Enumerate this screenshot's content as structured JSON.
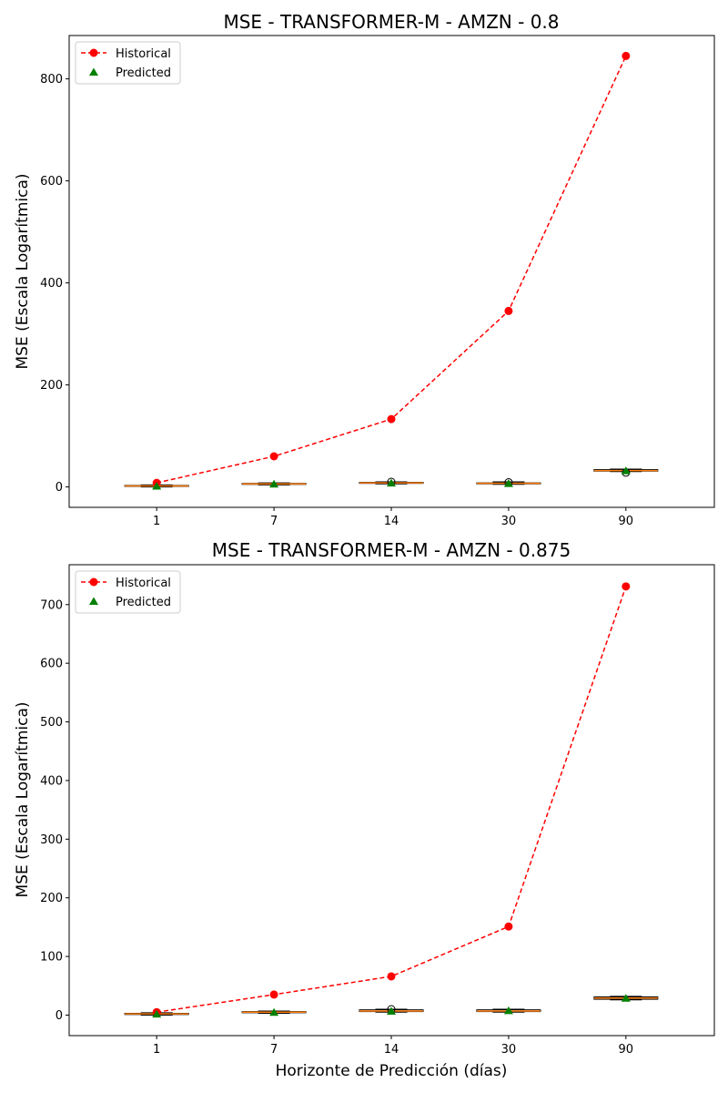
{
  "chart_data": [
    {
      "type": "line",
      "title": "MSE - TRANSFORMER-M - AMZN - 0.8",
      "xlabel": "",
      "ylabel": "MSE (Escala Logarítmica)",
      "categories": [
        "1",
        "7",
        "14",
        "30",
        "90"
      ],
      "ylim": [
        -40,
        885
      ],
      "yticks": [
        0,
        200,
        400,
        600,
        800
      ],
      "grid": false,
      "legend_position": "top-left",
      "series": [
        {
          "name": "Historical",
          "values": [
            8,
            60,
            133,
            345,
            845
          ],
          "color": "#ff0000",
          "marker": "circle",
          "style": "dashed"
        },
        {
          "name": "Predicted",
          "values": [
            2,
            6,
            8,
            7,
            32
          ],
          "color": "#008000",
          "marker": "triangle"
        }
      ],
      "boxes": [
        {
          "q1": 1,
          "median": 2,
          "q3": 3,
          "min": 0,
          "max": 4,
          "outliers": []
        },
        {
          "q1": 5,
          "median": 6,
          "q3": 7,
          "min": 4,
          "max": 8,
          "outliers": []
        },
        {
          "q1": 7,
          "median": 8,
          "q3": 9,
          "min": 6,
          "max": 10,
          "outliers": [
            10
          ]
        },
        {
          "q1": 6,
          "median": 7,
          "q3": 8,
          "min": 5,
          "max": 10,
          "outliers": [
            9
          ]
        },
        {
          "q1": 31,
          "median": 32,
          "q3": 34,
          "min": 30,
          "max": 35,
          "outliers": [
            28
          ]
        }
      ]
    },
    {
      "type": "line",
      "title": "MSE - TRANSFORMER-M - AMZN - 0.875",
      "xlabel": "Horizonte de Predicción (días)",
      "ylabel": "MSE (Escala Logarítmica)",
      "categories": [
        "1",
        "7",
        "14",
        "30",
        "90"
      ],
      "ylim": [
        -35,
        768
      ],
      "yticks": [
        0,
        100,
        200,
        300,
        400,
        500,
        600,
        700
      ],
      "grid": false,
      "legend_position": "top-left",
      "series": [
        {
          "name": "Historical",
          "values": [
            5,
            35,
            66,
            151,
            731
          ],
          "color": "#ff0000",
          "marker": "circle",
          "style": "dashed"
        },
        {
          "name": "Predicted",
          "values": [
            2,
            5,
            7,
            8,
            29
          ],
          "color": "#008000",
          "marker": "triangle"
        }
      ],
      "boxes": [
        {
          "q1": 1,
          "median": 2,
          "q3": 3,
          "min": 0,
          "max": 4,
          "outliers": []
        },
        {
          "q1": 4,
          "median": 5,
          "q3": 6,
          "min": 3,
          "max": 7,
          "outliers": []
        },
        {
          "q1": 6,
          "median": 7,
          "q3": 9,
          "min": 5,
          "max": 10,
          "outliers": [
            10
          ]
        },
        {
          "q1": 6,
          "median": 7,
          "q3": 9,
          "min": 5,
          "max": 10,
          "outliers": []
        },
        {
          "q1": 27,
          "median": 29,
          "q3": 31,
          "min": 26,
          "max": 32,
          "outliers": []
        }
      ]
    }
  ]
}
